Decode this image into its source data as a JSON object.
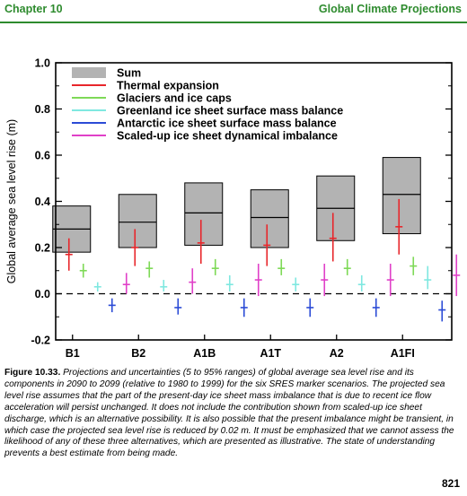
{
  "header": {
    "chapter": "Chapter 10",
    "section": "Global Climate Projections"
  },
  "colors": {
    "header_green": "#2e8b2e",
    "sum_box": "#b3b3b3",
    "thermal": "#e8262b",
    "glaciers": "#7ed957",
    "greenland": "#7fe8e0",
    "antarctic": "#2b4bd6",
    "dynamical": "#e040c8"
  },
  "chart_data": {
    "type": "box-and-range",
    "ylabel": "Global average sea level rise (m)",
    "ylim": [
      -0.2,
      1.0
    ],
    "yticks": [
      "-0.2",
      "0.0",
      "0.2",
      "0.4",
      "0.6",
      "0.8",
      "1.0"
    ],
    "categories": [
      "B1",
      "B2",
      "A1B",
      "A1T",
      "A2",
      "A1FI"
    ],
    "zero_line": "dashed",
    "legend_position": "top-left",
    "legend": [
      {
        "key": "sum",
        "label": "Sum",
        "color": "#b3b3b3"
      },
      {
        "key": "thermal",
        "label": "Thermal expansion",
        "color": "#e8262b"
      },
      {
        "key": "glaciers",
        "label": "Glaciers and ice caps",
        "color": "#7ed957"
      },
      {
        "key": "greenland",
        "label": "Greenland ice sheet surface mass balance",
        "color": "#7fe8e0"
      },
      {
        "key": "antarctic",
        "label": "Antarctic ice sheet surface mass balance",
        "color": "#2b4bd6"
      },
      {
        "key": "dynamical",
        "label": "Scaled-up ice sheet dynamical imbalance",
        "color": "#e040c8"
      }
    ],
    "sum": [
      {
        "low": 0.18,
        "mid": 0.28,
        "high": 0.38
      },
      {
        "low": 0.2,
        "mid": 0.31,
        "high": 0.43
      },
      {
        "low": 0.21,
        "mid": 0.35,
        "high": 0.48
      },
      {
        "low": 0.2,
        "mid": 0.33,
        "high": 0.45
      },
      {
        "low": 0.23,
        "mid": 0.37,
        "high": 0.51
      },
      {
        "low": 0.26,
        "mid": 0.43,
        "high": 0.59
      }
    ],
    "components": [
      {
        "key": "thermal",
        "ranges": [
          {
            "low": 0.1,
            "mid": 0.17,
            "high": 0.24
          },
          {
            "low": 0.12,
            "mid": 0.2,
            "high": 0.28
          },
          {
            "low": 0.13,
            "mid": 0.22,
            "high": 0.32
          },
          {
            "low": 0.12,
            "mid": 0.21,
            "high": 0.3
          },
          {
            "low": 0.14,
            "mid": 0.24,
            "high": 0.35
          },
          {
            "low": 0.17,
            "mid": 0.29,
            "high": 0.41
          }
        ]
      },
      {
        "key": "glaciers",
        "ranges": [
          {
            "low": 0.07,
            "mid": 0.1,
            "high": 0.13
          },
          {
            "low": 0.07,
            "mid": 0.11,
            "high": 0.14
          },
          {
            "low": 0.08,
            "mid": 0.11,
            "high": 0.15
          },
          {
            "low": 0.08,
            "mid": 0.11,
            "high": 0.15
          },
          {
            "low": 0.08,
            "mid": 0.11,
            "high": 0.15
          },
          {
            "low": 0.08,
            "mid": 0.12,
            "high": 0.16
          }
        ]
      },
      {
        "key": "greenland",
        "ranges": [
          {
            "low": 0.01,
            "mid": 0.03,
            "high": 0.05
          },
          {
            "low": 0.01,
            "mid": 0.03,
            "high": 0.06
          },
          {
            "low": 0.01,
            "mid": 0.04,
            "high": 0.08
          },
          {
            "low": 0.01,
            "mid": 0.04,
            "high": 0.07
          },
          {
            "low": 0.01,
            "mid": 0.04,
            "high": 0.08
          },
          {
            "low": 0.02,
            "mid": 0.06,
            "high": 0.12
          }
        ]
      },
      {
        "key": "antarctic",
        "ranges": [
          {
            "low": -0.08,
            "mid": -0.05,
            "high": -0.02
          },
          {
            "low": -0.09,
            "mid": -0.06,
            "high": -0.02
          },
          {
            "low": -0.1,
            "mid": -0.06,
            "high": -0.02
          },
          {
            "low": -0.1,
            "mid": -0.06,
            "high": -0.02
          },
          {
            "low": -0.1,
            "mid": -0.06,
            "high": -0.02
          },
          {
            "low": -0.12,
            "mid": -0.07,
            "high": -0.03
          }
        ]
      },
      {
        "key": "dynamical",
        "ranges": [
          {
            "low": 0.0,
            "mid": 0.04,
            "high": 0.09
          },
          {
            "low": 0.0,
            "mid": 0.05,
            "high": 0.11
          },
          {
            "low": -0.01,
            "mid": 0.06,
            "high": 0.13
          },
          {
            "low": -0.01,
            "mid": 0.06,
            "high": 0.13
          },
          {
            "low": -0.01,
            "mid": 0.06,
            "high": 0.13
          },
          {
            "low": -0.01,
            "mid": 0.08,
            "high": 0.17
          }
        ]
      }
    ]
  },
  "caption": {
    "label": "Figure 10.33.",
    "text": "Projections and uncertainties (5 to 95% ranges) of global average sea level rise and its components in 2090 to 2099 (relative to 1980 to 1999) for the six SRES marker scenarios. The projected sea level rise assumes that the part of the present-day ice sheet mass imbalance that is due to recent ice flow acceleration will persist unchanged. It does not include the contribution shown from scaled-up ice sheet discharge, which is an alternative possibility. It is also possible that the present imbalance might be transient, in which case the projected sea level rise is reduced by 0.02 m. It must be emphasized that we cannot assess the likelihood of any of these three alternatives, which are presented as illustrative. The state of understanding prevents a best estimate from being made."
  },
  "page_number": "821"
}
